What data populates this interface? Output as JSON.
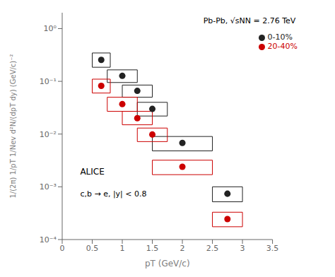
{
  "chart_data": {
    "type": "scatter",
    "xlabel": "pT (GeV/c)",
    "ylabel": "1/(2π) 1/pT 1/Nev d²N/(dpT dy)  (GeV/c)⁻²",
    "annotations": [
      {
        "text": "Pb-Pb, √sNN = 2.76 TeV"
      },
      {
        "text": "ALICE"
      },
      {
        "text": "c,b → e, |y| < 0.8"
      }
    ],
    "xlim": [
      0,
      3.5
    ],
    "xticks": [
      0,
      0.5,
      1,
      1.5,
      2,
      2.5,
      3,
      3.5
    ],
    "ylim": [
      0.0001,
      2
    ],
    "yticks": [
      {
        "value": 0.0001,
        "label": "10⁻⁴"
      },
      {
        "value": 0.001,
        "label": "10⁻³"
      },
      {
        "value": 0.01,
        "label": "10⁻²"
      },
      {
        "value": 0.1,
        "label": "10⁻¹"
      },
      {
        "value": 1,
        "label": "10⁰"
      }
    ],
    "log": "y",
    "grid": false,
    "legend": "upper right",
    "series": [
      {
        "name": "0-10%",
        "color": "#222222",
        "marker": "circle",
        "x": [
          0.65,
          1.0,
          1.25,
          1.5,
          2.0,
          2.75
        ],
        "values": [
          0.255,
          0.127,
          0.066,
          0.03,
          0.0068,
          0.00074
        ],
        "box_xlo": [
          0.5,
          0.75,
          1.0,
          1.25,
          1.5,
          2.5
        ],
        "box_xhi": [
          0.8,
          1.25,
          1.5,
          1.75,
          2.5,
          3.0
        ],
        "box_ylo": [
          0.185,
          0.095,
          0.05,
          0.022,
          0.0048,
          0.00052
        ],
        "box_yhi": [
          0.345,
          0.165,
          0.085,
          0.04,
          0.009,
          0.001
        ]
      },
      {
        "name": "20-40%",
        "color": "#cc0000",
        "marker": "circle",
        "x": [
          0.65,
          1.0,
          1.25,
          1.5,
          2.0,
          2.75
        ],
        "values": [
          0.082,
          0.037,
          0.02,
          0.0098,
          0.0024,
          0.000245
        ],
        "box_xlo": [
          0.5,
          0.75,
          1.0,
          1.25,
          1.5,
          2.5
        ],
        "box_xhi": [
          0.8,
          1.25,
          1.5,
          1.75,
          2.5,
          3.0
        ],
        "box_ylo": [
          0.06,
          0.027,
          0.015,
          0.0072,
          0.0017,
          0.000175
        ],
        "box_yhi": [
          0.11,
          0.05,
          0.027,
          0.013,
          0.0032,
          0.00033
        ]
      }
    ]
  }
}
